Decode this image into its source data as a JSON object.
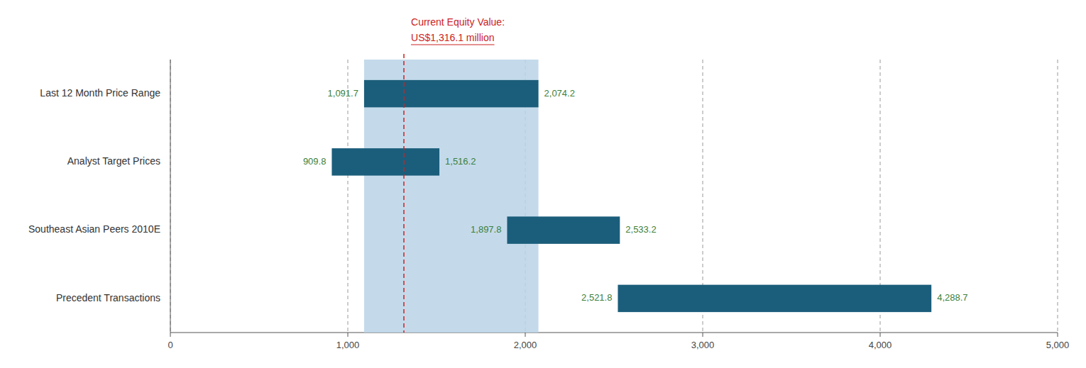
{
  "chart_data": {
    "type": "bar",
    "orientation": "horizontal",
    "categories": [
      "Last 12 Month Price Range",
      "Analyst Target Prices",
      "Southeast Asian Peers 2010E",
      "Precedent Transactions"
    ],
    "values": [
      [
        1091.7,
        2074.2
      ],
      [
        909.8,
        1516.2
      ],
      [
        1897.8,
        2533.2
      ],
      [
        2521.8,
        4288.7
      ]
    ],
    "value_labels": [
      [
        "1,091.7",
        "2,074.2"
      ],
      [
        "909.8",
        "1,516.2"
      ],
      [
        "1,897.8",
        "2,533.2"
      ],
      [
        "2,521.8",
        "4,288.7"
      ]
    ],
    "data_labels": true,
    "color": "#1b5e7b",
    "highlight_range": [
      1091.7,
      2074.2
    ],
    "highlight_color": "#bad4e8",
    "reference_line": {
      "value": 1316.1,
      "label": [
        "Current Equity Value:",
        "US$1,316.1 million"
      ],
      "color": "#cc2222"
    },
    "xlim": [
      0,
      5000
    ],
    "xticks": [
      0,
      {
        "value": 1000,
        "label": "1,000"
      },
      {
        "value": 2000,
        "label": "2,000"
      },
      {
        "value": 3000,
        "label": "3,000"
      },
      {
        "value": 4000,
        "label": "4,000"
      },
      {
        "value": 5000,
        "label": "5,000"
      }
    ],
    "grid": true
  }
}
